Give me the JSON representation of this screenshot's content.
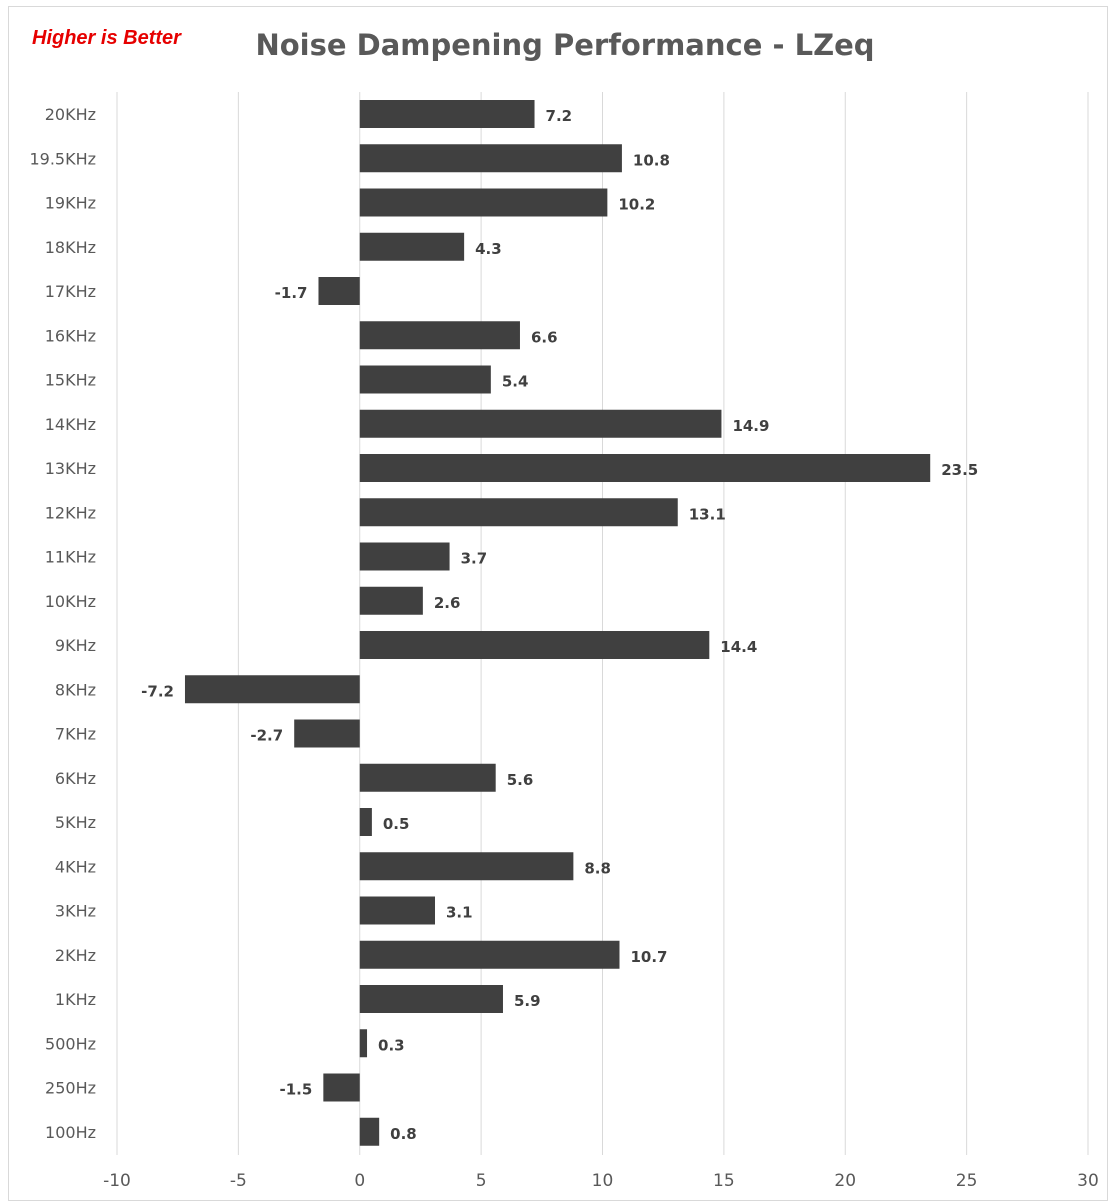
{
  "note": "Higher is Better",
  "colors": {
    "bar": "#404040",
    "grid": "#d9d9d9",
    "note": "#e60000",
    "text": "#595959"
  },
  "chart_data": {
    "type": "bar",
    "orientation": "horizontal",
    "title": "Noise Dampening Performance - LZeq",
    "xlabel": "",
    "ylabel": "",
    "categories": [
      "20KHz",
      "19.5KHz",
      "19KHz",
      "18KHz",
      "17KHz",
      "16KHz",
      "15KHz",
      "14KHz",
      "13KHz",
      "12KHz",
      "11KHz",
      "10KHz",
      "9KHz",
      "8KHz",
      "7KHz",
      "6KHz",
      "5KHz",
      "4KHz",
      "3KHz",
      "2KHz",
      "1KHz",
      "500Hz",
      "250Hz",
      "100Hz"
    ],
    "values": [
      7.2,
      10.8,
      10.2,
      4.3,
      -1.7,
      6.6,
      5.4,
      14.9,
      23.5,
      13.1,
      3.7,
      2.6,
      14.4,
      -7.2,
      -2.7,
      5.6,
      0.5,
      8.8,
      3.1,
      10.7,
      5.9,
      0.3,
      -1.5,
      0.8
    ],
    "xlim": [
      -10,
      30
    ],
    "xticks": [
      "-10",
      "-5",
      "0",
      "5",
      "10",
      "15",
      "20",
      "25",
      "30"
    ],
    "grid": "vertical",
    "legend": "none"
  }
}
